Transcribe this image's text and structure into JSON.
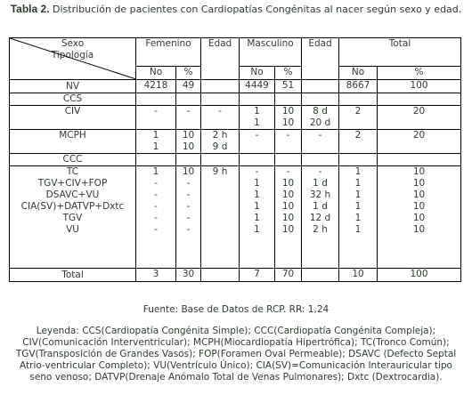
{
  "header": {
    "number": "Tabla 2.",
    "caption": "Distribución de pacientes con Cardiopatías Congénitas al nacer según sexo y edad."
  },
  "table": {
    "header": {
      "sexo": "Sexo",
      "tipologia": "Tipología",
      "femenino": "Femenino",
      "edad_f": "Edad",
      "masculino": "Masculino",
      "edad_m": "Edad",
      "total": "Total",
      "no": "No",
      "pct": "%"
    },
    "groups": [
      [
        {
          "label": "NV",
          "cells": [
            "4218",
            "49",
            null,
            "4449",
            "51",
            null,
            "8667",
            "100"
          ]
        }
      ],
      [
        {
          "label": "CCS",
          "cells": [
            null,
            null,
            null,
            null,
            null,
            null,
            null,
            null
          ]
        }
      ],
      [
        {
          "label": "CIV",
          "cells": [
            "-",
            "-",
            "-",
            [
              "1",
              "1"
            ],
            [
              "10",
              "10"
            ],
            [
              "8 d",
              "20 d"
            ],
            "2",
            "20"
          ]
        }
      ],
      [
        {
          "label": "MCPH",
          "cells": [
            [
              "1",
              "1"
            ],
            [
              "10",
              "10"
            ],
            [
              "2 h",
              "9 d"
            ],
            "-",
            "-",
            "-",
            "2",
            "20"
          ]
        }
      ],
      [
        {
          "label": "CCC",
          "cells": [
            null,
            null,
            null,
            null,
            null,
            null,
            null,
            null
          ]
        }
      ],
      [
        {
          "label": "TC",
          "cells": [
            "1",
            "10",
            "9 h",
            "-",
            "-",
            "-",
            "1",
            "10"
          ]
        },
        {
          "label": "TGV+CIV+FOP",
          "cells": [
            "-",
            "-",
            null,
            "1",
            "10",
            "1 d",
            "1",
            "10"
          ]
        },
        {
          "label": "DSAVC+VU",
          "cells": [
            "-",
            "-",
            null,
            "1",
            "10",
            "32 h",
            "1",
            "10"
          ]
        },
        {
          "label": "CIA(SV)+DATVP+Dxtc",
          "cells": [
            "-",
            "-",
            null,
            "1",
            "10",
            "1 d",
            "1",
            "10"
          ]
        },
        {
          "label": "TGV",
          "cells": [
            "-",
            "-",
            null,
            "1",
            "10",
            "12 d",
            "1",
            "10"
          ]
        },
        {
          "label": "VU",
          "cells": [
            "-",
            "-",
            null,
            "1",
            "10",
            "2 h",
            "1",
            "10"
          ]
        }
      ],
      [
        {
          "label": "Total",
          "cells": [
            "3",
            "30",
            null,
            "7",
            "70",
            null,
            "10",
            "100"
          ]
        }
      ]
    ]
  },
  "footer": {
    "source": "Fuente: Base de Datos de RCP.   RR: 1,24",
    "legend": "Leyenda: CCS(Cardiopatía Congénita Simple); CCC(Cardiopatía Congénita Compleja); CIV(Comunicación Interventricular); MCPH(Miocardiopatía Hipertrófica); TC(Tronco Común); TGV(Transposición de Grandes Vasos); FOP(Foramen Oval Permeable); DSAVC (Defecto Septal Atrio-ventricular Completo); VU(Ventrículo Único); CIA(SV)=Comunicación Interauricular tipo seno venoso; DATVP(Drenaje Anómalo Total de Venas Pulmonares); Dxtc (Dextrocardia)."
  }
}
